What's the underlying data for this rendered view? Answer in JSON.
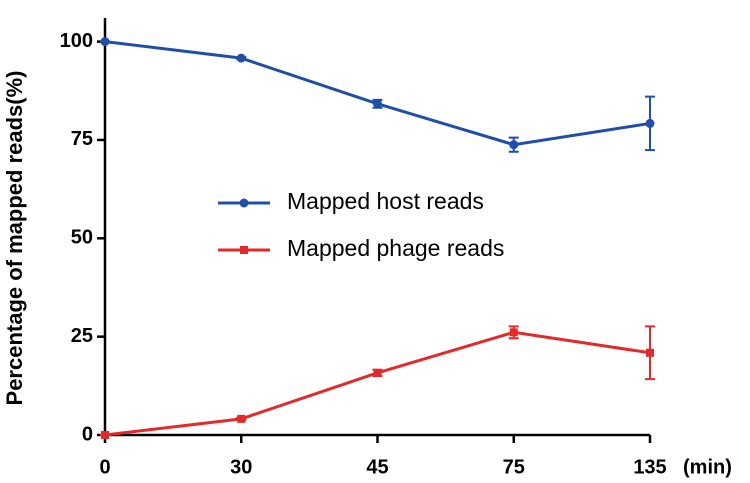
{
  "chart_data": {
    "type": "line",
    "y_label": "Percentage of mapped reads(%)",
    "x_label": "(min)",
    "categories": [
      "0",
      "30",
      "45",
      "75",
      "135"
    ],
    "series": [
      {
        "name": "Mapped host reads",
        "color": "#1f4fa8",
        "marker": "circle",
        "values": [
          100,
          95.8,
          84.2,
          73.8,
          79.2
        ],
        "errors": [
          0,
          0.3,
          1,
          1.8,
          6.8
        ]
      },
      {
        "name": "Mapped phage reads",
        "color": "#e32a2a",
        "marker": "square",
        "values": [
          0,
          4.1,
          15.8,
          26.1,
          20.9
        ],
        "errors": [
          0,
          0.3,
          0.8,
          1.5,
          6.7
        ]
      }
    ],
    "ylim": [
      0,
      106
    ],
    "yticks": [
      0,
      25,
      50,
      75,
      100
    ]
  }
}
